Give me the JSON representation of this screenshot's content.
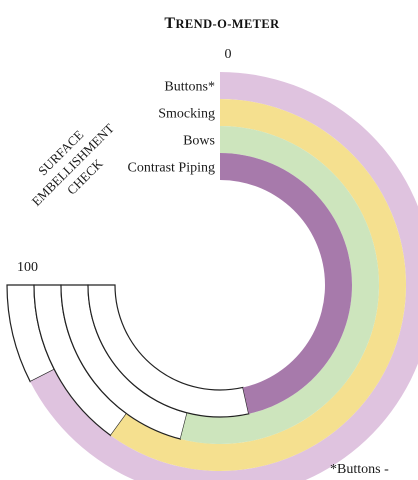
{
  "chart_data": {
    "type": "radial-bar",
    "title": "Trend-o-meter",
    "side_label_lines": [
      "SURFACE",
      "EMBELLISHMENT",
      "CHECK"
    ],
    "scale": {
      "min": 0,
      "max": 100,
      "min_label": "0",
      "max_label": "100"
    },
    "footnote": "*Buttons -",
    "series": [
      {
        "name": "Buttons*",
        "value": 90,
        "color": "#dfc3df"
      },
      {
        "name": "Smocking",
        "value": 80,
        "color": "#f5e08f"
      },
      {
        "name": "Bows",
        "value": 72,
        "color": "#cde5bd"
      },
      {
        "name": "Contrast Piping",
        "value": 62,
        "color": "#a77aab"
      }
    ],
    "empty_color": "#ffffff",
    "outline_color": "#222222"
  }
}
